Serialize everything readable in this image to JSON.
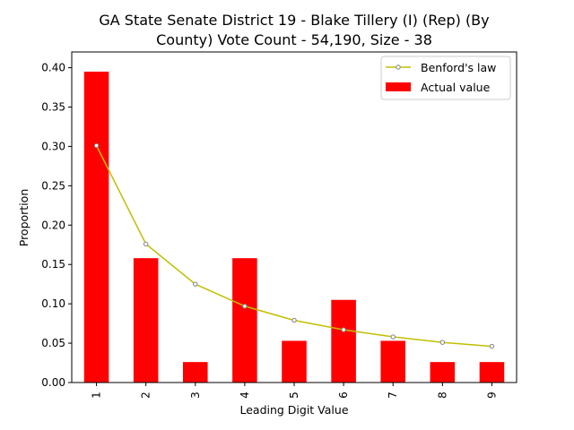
{
  "chart_data": {
    "type": "bar",
    "title_lines": [
      "GA State Senate District 19 - Blake Tillery (I) (Rep) (By",
      "County) Vote Count - 54,190, Size - 38"
    ],
    "xlabel": "Leading Digit Value",
    "ylabel": "Proportion",
    "categories": [
      "1",
      "2",
      "3",
      "4",
      "5",
      "6",
      "7",
      "8",
      "9"
    ],
    "ylim": [
      0,
      0.42
    ],
    "yticks": [
      "0.00",
      "0.05",
      "0.10",
      "0.15",
      "0.20",
      "0.25",
      "0.30",
      "0.35",
      "0.40"
    ],
    "series": [
      {
        "name": "Actual value",
        "kind": "bar",
        "color": "#ff0000",
        "values": [
          0.395,
          0.158,
          0.026,
          0.158,
          0.053,
          0.105,
          0.053,
          0.026,
          0.026
        ]
      },
      {
        "name": "Benford's law",
        "kind": "line",
        "color": "#bfbf00",
        "values": [
          0.301,
          0.176,
          0.125,
          0.097,
          0.079,
          0.067,
          0.058,
          0.051,
          0.046
        ]
      }
    ],
    "legend_position": "top-right",
    "grid": false
  }
}
